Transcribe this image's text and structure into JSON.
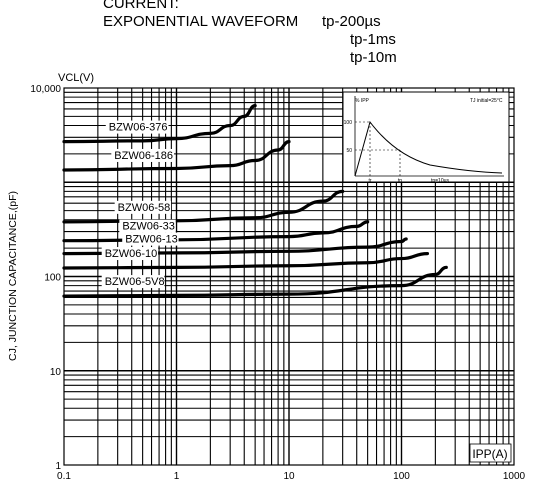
{
  "header": {
    "line1": "CURRENT:",
    "line2": "EXPONENTIAL WAVEFORM",
    "tp_labels": [
      "tp-200µs",
      "tp-1ms",
      "tp-10m"
    ]
  },
  "chart_data": {
    "type": "line",
    "title": "",
    "xlabel": "IPP(A)",
    "ylabel": "CJ, JUNCTION CAPACITANCE,(pF)",
    "corner_label": "VCL(V)",
    "xscale": "log",
    "yscale": "log",
    "xlim": [
      0.1,
      1000
    ],
    "ylim": [
      1,
      10000
    ],
    "xticks": [
      "0.1",
      "1",
      "10",
      "100",
      "1000"
    ],
    "yticks": [
      "1",
      "10",
      "100",
      "10,000"
    ],
    "grid": true,
    "series": [
      {
        "name": "BZW06-376",
        "x": [
          0.1,
          0.5,
          1,
          2,
          3,
          4,
          5
        ],
        "y": [
          2700,
          2750,
          2900,
          3300,
          4000,
          5000,
          6500
        ]
      },
      {
        "name": "BZW06-186",
        "x": [
          0.1,
          1,
          3,
          5,
          8,
          10
        ],
        "y": [
          1350,
          1400,
          1500,
          1700,
          2200,
          2700
        ]
      },
      {
        "name": "BZW06-58",
        "x": [
          0.1,
          1,
          5,
          10,
          20,
          30
        ],
        "y": [
          380,
          390,
          420,
          480,
          630,
          800
        ]
      },
      {
        "name": "BZW06-33",
        "x": [
          0.1,
          1,
          10,
          20,
          40,
          50
        ],
        "y": [
          240,
          245,
          265,
          290,
          340,
          380
        ]
      },
      {
        "name": "BZW06-13",
        "x": [
          0.1,
          1,
          10,
          50,
          100,
          110
        ],
        "y": [
          175,
          178,
          185,
          205,
          235,
          250
        ]
      },
      {
        "name": "BZW06-10",
        "x": [
          0.1,
          1,
          10,
          50,
          100,
          170
        ],
        "y": [
          123,
          125,
          130,
          140,
          155,
          175
        ]
      },
      {
        "name": "BZW06-5V8",
        "x": [
          0.1,
          1,
          10,
          100,
          200,
          250
        ],
        "y": [
          62,
          63,
          65,
          80,
          105,
          125
        ]
      }
    ],
    "inset": {
      "y_label": "% IPP",
      "right_label": "TJ initial=25°C",
      "y_ticks": [
        "100",
        "50"
      ],
      "x_ticks": [
        "tr",
        "tp"
      ],
      "x_label": "tp=10μs"
    }
  }
}
